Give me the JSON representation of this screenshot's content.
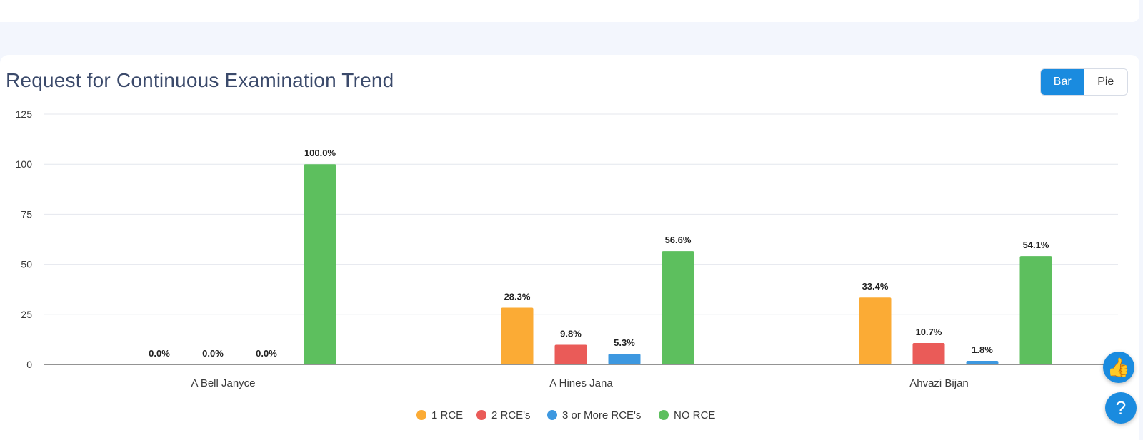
{
  "title": "Request for Continuous Examination Trend",
  "view_toggle": {
    "options": [
      "Bar",
      "Pie"
    ],
    "active": "Bar"
  },
  "floating_buttons": [
    {
      "name": "thumbs-up-icon",
      "glyph": "👍"
    },
    {
      "name": "help-icon",
      "glyph": "?"
    }
  ],
  "chart_data": {
    "type": "bar",
    "categories": [
      "A Bell Janyce",
      "A Hines Jana",
      "Ahvazi Bijan"
    ],
    "series": [
      {
        "name": "1 RCE",
        "color": "#fbab35",
        "values": [
          0.0,
          28.3,
          33.4
        ]
      },
      {
        "name": "2 RCE's",
        "color": "#ea5b58",
        "values": [
          0.0,
          9.8,
          10.7
        ]
      },
      {
        "name": "3 or More RCE's",
        "color": "#3d98e0",
        "values": [
          0.0,
          5.3,
          1.8
        ]
      },
      {
        "name": "NO RCE",
        "color": "#5dbf5e",
        "values": [
          100.0,
          56.6,
          54.1
        ]
      }
    ],
    "data_labels": [
      [
        "0.0%",
        "28.3%",
        "33.4%"
      ],
      [
        "0.0%",
        "9.8%",
        "10.7%"
      ],
      [
        "0.0%",
        "5.3%",
        "1.8%"
      ],
      [
        "100.0%",
        "56.6%",
        "54.1%"
      ]
    ],
    "yticks": [
      "0",
      "25",
      "50",
      "75",
      "100",
      "125"
    ],
    "ylim": [
      0,
      125
    ],
    "grid": true,
    "legend_position": "bottom"
  }
}
